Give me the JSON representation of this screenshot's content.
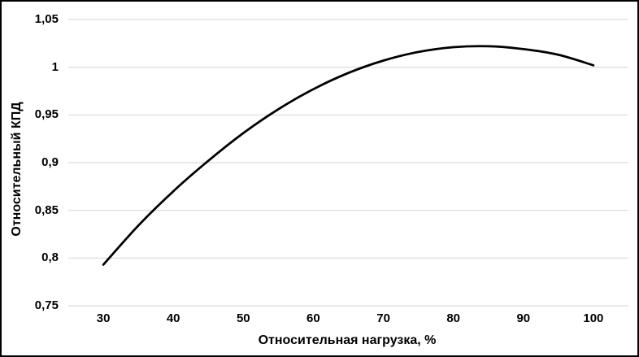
{
  "chart_data": {
    "type": "line",
    "title": "",
    "xlabel": "Относительная нагрузка, %",
    "ylabel": "Относительный КПД",
    "xlim": [
      25,
      105
    ],
    "ylim": [
      0.75,
      1.05
    ],
    "grid": "horizontal-only",
    "legend": "none",
    "gridline_color": "#d9d9d9",
    "text_color": "#000000",
    "background": "#ffffff",
    "x_ticks": {
      "values": [
        30,
        40,
        50,
        60,
        70,
        80,
        90,
        100
      ],
      "labels": [
        "30",
        "40",
        "50",
        "60",
        "70",
        "80",
        "90",
        "100"
      ]
    },
    "y_ticks": {
      "values": [
        0.75,
        0.8,
        0.85,
        0.9,
        0.95,
        1.0,
        1.05
      ],
      "labels": [
        "0,75",
        "0,8",
        "0,85",
        "0,9",
        "0,95",
        "1",
        "1,05"
      ]
    },
    "series": [
      {
        "name": "Относительный КПД",
        "color": "#000000",
        "line_width": 2.75,
        "points": [
          [
            30,
            0.793
          ],
          [
            35,
            0.834
          ],
          [
            40,
            0.87
          ],
          [
            45,
            0.902
          ],
          [
            50,
            0.931
          ],
          [
            55,
            0.956
          ],
          [
            60,
            0.977
          ],
          [
            65,
            0.994
          ],
          [
            70,
            1.007
          ],
          [
            75,
            1.016
          ],
          [
            80,
            1.021
          ],
          [
            85,
            1.022
          ],
          [
            90,
            1.019
          ],
          [
            95,
            1.013
          ],
          [
            100,
            1.002
          ]
        ]
      }
    ]
  }
}
